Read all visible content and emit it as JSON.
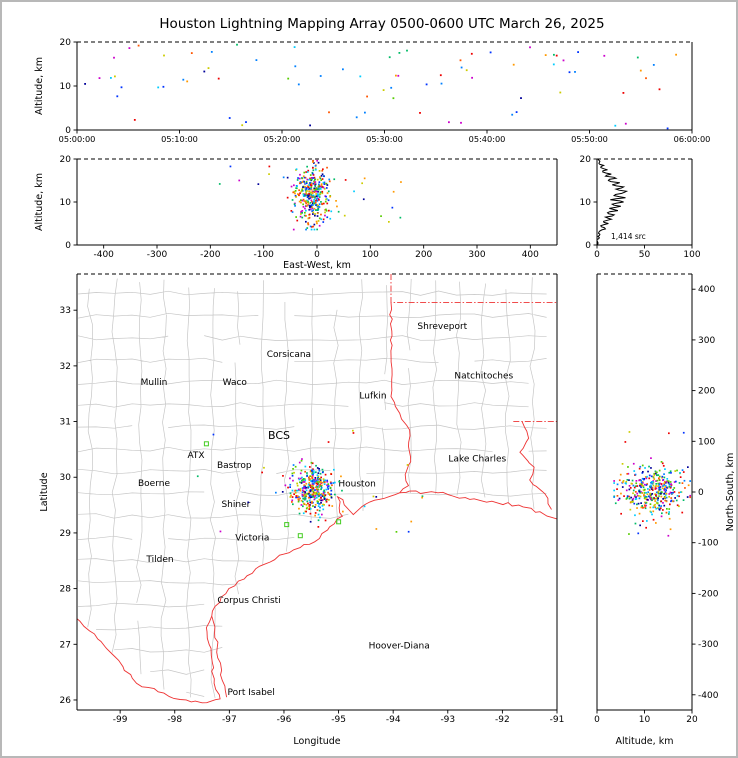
{
  "title": "Houston Lightning Mapping Array 0500-0600 UTC March 26, 2025",
  "colors": {
    "border": "#ee3333",
    "county": "#c6c6c6",
    "station": "#44cc22",
    "histogram": "#000000",
    "label_orange": "#e8821e",
    "label_blue": "#2222cc"
  },
  "panels": {
    "time_altitude": {
      "ylabel": "Altitude, km",
      "xlim": [
        0,
        3600
      ],
      "xtick_seconds": [
        0,
        600,
        1200,
        1800,
        2400,
        3000,
        3600
      ],
      "xtick_labels": [
        "05:00:00",
        "05:10:00",
        "05:20:00",
        "05:30:00",
        "05:40:00",
        "05:50:00",
        "06:00:00"
      ],
      "yticks": [
        0,
        10,
        20
      ],
      "ylim": [
        0,
        20
      ]
    },
    "ew_altitude": {
      "xlabel": "East-West, km",
      "ylabel": "Altitude, km",
      "xticks": [
        -400,
        -300,
        -200,
        -100,
        0,
        100,
        200,
        300,
        400
      ],
      "xlim": [
        -450,
        450
      ],
      "yticks": [
        0,
        10,
        20
      ],
      "ylim": [
        0,
        20
      ]
    },
    "altitude_histogram": {
      "annotation": "1,414 src",
      "xticks": [
        0,
        50,
        100
      ],
      "xlim": [
        0,
        100
      ],
      "yticks": [
        0,
        10,
        20
      ],
      "ylim": [
        0,
        20
      ]
    },
    "map": {
      "xlabel": "Longitude",
      "ylabel": "Latitude",
      "xticks": [
        -99,
        -98,
        -97,
        -96,
        -95,
        -94,
        -93,
        -92,
        -91
      ],
      "xlim": [
        -99.79,
        -91
      ],
      "yticks": [
        26,
        27,
        28,
        29,
        30,
        31,
        32,
        33
      ],
      "ylim": [
        25.82,
        33.65
      ]
    },
    "ns_altitude": {
      "xlabel": "Altitude, km",
      "ylabel": "North-South, km",
      "xticks": [
        0,
        10,
        20
      ],
      "xlim": [
        0,
        20
      ],
      "yticks": [
        400,
        300,
        200,
        100,
        0,
        -100,
        -200,
        -300,
        -400
      ],
      "ylim": [
        -430,
        430
      ]
    }
  },
  "map_labels": [
    {
      "text": "Shreveport",
      "lon": -93.1,
      "lat": 32.66,
      "color": "#000000",
      "size": 9
    },
    {
      "text": "Corsicana",
      "lon": -95.91,
      "lat": 32.16,
      "color": "#000000",
      "size": 9
    },
    {
      "text": "Waco",
      "lon": -96.9,
      "lat": 31.66,
      "color": "#000000",
      "size": 9
    },
    {
      "text": "Mullin",
      "lon": -98.38,
      "lat": 31.66,
      "color": "#e8821e",
      "size": 9
    },
    {
      "text": "Lufkin",
      "lon": -94.37,
      "lat": 31.41,
      "color": "#000000",
      "size": 9
    },
    {
      "text": "Natchitoches",
      "lon": -92.34,
      "lat": 31.77,
      "color": "#000000",
      "size": 9
    },
    {
      "text": "BCS",
      "lon": -96.09,
      "lat": 30.69,
      "color": "#000000",
      "size": 11
    },
    {
      "text": "ATX",
      "lon": -97.61,
      "lat": 30.35,
      "color": "#e8821e",
      "size": 9
    },
    {
      "text": "Bastrop",
      "lon": -96.91,
      "lat": 30.17,
      "color": "#000000",
      "size": 9
    },
    {
      "text": "Lake Charles",
      "lon": -92.46,
      "lat": 30.28,
      "color": "#000000",
      "size": 9
    },
    {
      "text": "Boerne",
      "lon": -98.38,
      "lat": 29.84,
      "color": "#000000",
      "size": 9
    },
    {
      "text": "Houston",
      "lon": -94.66,
      "lat": 29.83,
      "color": "#e8821e",
      "size": 9
    },
    {
      "text": "Shiner",
      "lon": -96.88,
      "lat": 29.47,
      "color": "#000000",
      "size": 9
    },
    {
      "text": "Victoria",
      "lon": -96.58,
      "lat": 28.86,
      "color": "#000000",
      "size": 9
    },
    {
      "text": "Tilden",
      "lon": -98.27,
      "lat": 28.48,
      "color": "#000000",
      "size": 9
    },
    {
      "text": "Corpus Christi",
      "lon": -96.64,
      "lat": 27.74,
      "color": "#000000",
      "size": 9
    },
    {
      "text": "Hoover-Diana",
      "lon": -93.89,
      "lat": 26.92,
      "color": "#2222cc",
      "size": 9
    },
    {
      "text": "Port Isabel",
      "lon": -96.6,
      "lat": 26.09,
      "color": "#000000",
      "size": 9
    }
  ],
  "map_geometry": {
    "land_boundary": [
      [
        -99.79,
        27.5
      ],
      [
        -99.1,
        26.8
      ],
      [
        -98.4,
        26.2
      ],
      [
        -97.6,
        25.95
      ],
      [
        -97.2,
        26.0
      ],
      [
        -97.0,
        27.5
      ],
      [
        -96.7,
        28.2
      ],
      [
        -95.8,
        28.7
      ],
      [
        -94.9,
        29.2
      ],
      [
        -93.9,
        29.68
      ],
      [
        -92.4,
        29.6
      ],
      [
        -91.0,
        29.28
      ]
    ],
    "state_borders": [
      {
        "name": "texas-oklahoma-arkansas",
        "style": "political",
        "points": [
          [
            -94.04,
            33.65
          ],
          [
            -94.04,
            33.14
          ],
          [
            -91.0,
            33.14
          ]
        ]
      },
      {
        "name": "texas-louisiana-sabine",
        "style": "river",
        "points": [
          [
            -94.04,
            33.14
          ],
          [
            -94.04,
            31.45
          ],
          [
            -93.88,
            31.15
          ],
          [
            -93.7,
            30.85
          ],
          [
            -93.72,
            30.55
          ],
          [
            -93.68,
            30.28
          ],
          [
            -93.78,
            30.05
          ],
          [
            -93.72,
            29.85
          ],
          [
            -93.88,
            29.72
          ]
        ]
      },
      {
        "name": "louisiana-mississippi-31n",
        "style": "political",
        "points": [
          [
            -91.8,
            31.0
          ],
          [
            -91.0,
            31.0
          ]
        ]
      },
      {
        "name": "mississippi-river",
        "style": "river",
        "points": [
          [
            -91.64,
            31.0
          ],
          [
            -91.52,
            30.7
          ],
          [
            -91.68,
            30.45
          ],
          [
            -91.42,
            30.18
          ],
          [
            -91.5,
            29.95
          ],
          [
            -91.22,
            29.7
          ],
          [
            -91.1,
            29.42
          ]
        ]
      },
      {
        "name": "gulf-coast-rio-grande",
        "style": "coast",
        "points": [
          [
            -91.0,
            29.25
          ],
          [
            -91.7,
            29.5
          ],
          [
            -92.4,
            29.58
          ],
          [
            -93.3,
            29.74
          ],
          [
            -93.88,
            29.72
          ],
          [
            -94.5,
            29.52
          ],
          [
            -94.73,
            29.33
          ],
          [
            -95.02,
            29.65
          ],
          [
            -94.93,
            29.3
          ],
          [
            -95.35,
            28.9
          ],
          [
            -96.0,
            28.62
          ],
          [
            -96.45,
            28.4
          ],
          [
            -96.9,
            28.05
          ],
          [
            -97.15,
            27.85
          ],
          [
            -97.42,
            27.3
          ],
          [
            -97.33,
            26.8
          ],
          [
            -97.28,
            26.3
          ],
          [
            -97.17,
            26.02
          ],
          [
            -97.5,
            25.95
          ],
          [
            -98.1,
            26.06
          ],
          [
            -98.7,
            26.3
          ],
          [
            -99.1,
            26.78
          ],
          [
            -99.35,
            27.05
          ],
          [
            -99.79,
            27.46
          ]
        ]
      },
      {
        "name": "barrier-island",
        "style": "coast",
        "points": [
          [
            -97.32,
            27.5
          ],
          [
            -97.22,
            26.95
          ],
          [
            -97.13,
            26.35
          ],
          [
            -97.05,
            26.05
          ]
        ]
      }
    ],
    "stations": [
      [
        -97.42,
        30.6
      ],
      [
        -95.95,
        29.15
      ],
      [
        -95.0,
        29.2
      ],
      [
        -95.7,
        28.95
      ]
    ]
  },
  "chart_data": {
    "type": "scatter",
    "title": "Houston Lightning Mapping Array 0500-0600 UTC March 26, 2025",
    "source_count": 1414,
    "time_window_utc": [
      "05:00:00",
      "06:00:00"
    ],
    "date": "March 26, 2025",
    "legend_position": "none",
    "grid": false,
    "main_cluster": {
      "description": "dense lightning source region near Houston",
      "count": 380,
      "lon": -95.48,
      "lon_sd": 0.2,
      "lat": 29.78,
      "lat_sd": 0.2,
      "alt_km_mean": 11.5,
      "alt_km_sd": 3.3
    },
    "outliers": {
      "description": "sparse isolated sources across SE Texas / Gulf",
      "count": 28,
      "lon_range": [
        -97.6,
        -93.4
      ],
      "lat_range": [
        28.85,
        30.85
      ]
    },
    "time_points": {
      "description": "sources vs time across 0500-0600 UTC",
      "count": 82,
      "alt_km_range": [
        0,
        20
      ]
    },
    "altitude_histogram": {
      "altitude_km": [
        0,
        0.5,
        1,
        1.5,
        2,
        2.5,
        3,
        3.5,
        4,
        4.5,
        5,
        5.5,
        6,
        6.5,
        7,
        7.5,
        8,
        8.5,
        9,
        9.5,
        10,
        10.5,
        11,
        11.5,
        12,
        12.5,
        13,
        13.5,
        14,
        14.5,
        15,
        15.5,
        16,
        16.5,
        17,
        17.5,
        18,
        18.5,
        19,
        19.5,
        20
      ],
      "counts": [
        0,
        1,
        0,
        2,
        1,
        3,
        2,
        5,
        8,
        4,
        12,
        7,
        15,
        9,
        18,
        11,
        22,
        13,
        25,
        16,
        28,
        14,
        30,
        18,
        26,
        31,
        20,
        28,
        16,
        24,
        12,
        20,
        9,
        15,
        6,
        11,
        4,
        7,
        2,
        3,
        1
      ]
    },
    "point_colors": [
      "#000099",
      "#0033ff",
      "#0080ff",
      "#00ccff",
      "#00bb66",
      "#55cc00",
      "#cccc00",
      "#ff9900",
      "#ff5500",
      "#ee0000",
      "#cc00cc"
    ]
  }
}
